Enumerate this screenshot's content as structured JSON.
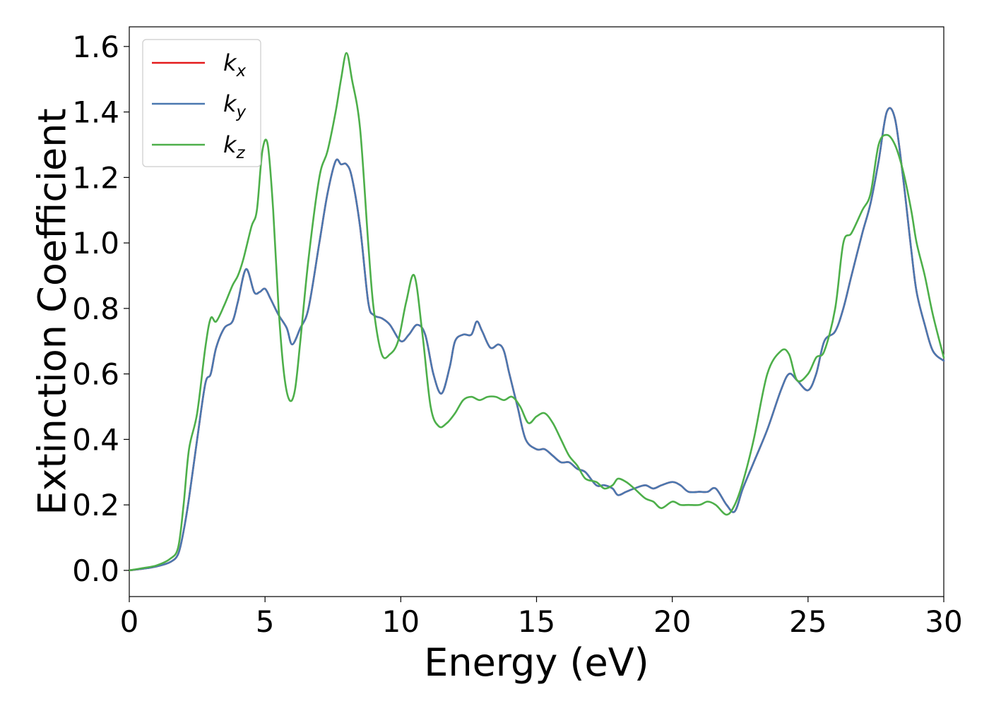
{
  "chart_data": {
    "type": "line",
    "title": "",
    "xlabel": "Energy (eV)",
    "ylabel": "Extinction Coefficient",
    "xlim": [
      0,
      30
    ],
    "ylim": [
      -0.08,
      1.66
    ],
    "xticks": [
      0,
      5,
      10,
      15,
      20,
      25,
      30
    ],
    "yticks": [
      0.0,
      0.2,
      0.4,
      0.6,
      0.8,
      1.0,
      1.2,
      1.4,
      1.6
    ],
    "grid": false,
    "legend_position": "top-left",
    "series": [
      {
        "name": "k",
        "subscript": "x",
        "color": "#e41a1c",
        "x": [
          0,
          0.5,
          1,
          1.5,
          1.8,
          2,
          2.2,
          2.5,
          2.8,
          3,
          3.2,
          3.5,
          3.8,
          4,
          4.3,
          4.6,
          4.8,
          5,
          5.2,
          5.5,
          5.8,
          6,
          6.3,
          6.6,
          7,
          7.3,
          7.6,
          7.8,
          8,
          8.2,
          8.5,
          8.8,
          9,
          9.3,
          9.6,
          10,
          10.3,
          10.6,
          10.9,
          11.2,
          11.5,
          11.8,
          12,
          12.3,
          12.6,
          12.8,
          13,
          13.3,
          13.6,
          13.8,
          14,
          14.3,
          14.6,
          15,
          15.3,
          15.6,
          15.9,
          16.2,
          16.5,
          16.8,
          17.2,
          17.5,
          17.8,
          18,
          18.3,
          18.6,
          19,
          19.3,
          19.6,
          20,
          20.3,
          20.6,
          21,
          21.3,
          21.6,
          22,
          22.3,
          22.6,
          23,
          23.5,
          24,
          24.3,
          24.6,
          25,
          25.3,
          25.6,
          26,
          26.3,
          26.6,
          27,
          27.3,
          27.6,
          27.9,
          28.2,
          28.5,
          28.8,
          29,
          29.3,
          29.6,
          30
        ],
        "values": [
          0,
          0.005,
          0.012,
          0.025,
          0.05,
          0.12,
          0.22,
          0.4,
          0.57,
          0.6,
          0.68,
          0.74,
          0.76,
          0.82,
          0.92,
          0.85,
          0.85,
          0.86,
          0.83,
          0.78,
          0.74,
          0.69,
          0.74,
          0.8,
          1.0,
          1.15,
          1.25,
          1.24,
          1.24,
          1.2,
          1.05,
          0.82,
          0.78,
          0.77,
          0.75,
          0.7,
          0.72,
          0.75,
          0.72,
          0.6,
          0.54,
          0.62,
          0.7,
          0.72,
          0.72,
          0.76,
          0.73,
          0.68,
          0.69,
          0.67,
          0.6,
          0.5,
          0.4,
          0.37,
          0.37,
          0.35,
          0.33,
          0.33,
          0.31,
          0.3,
          0.26,
          0.26,
          0.25,
          0.23,
          0.24,
          0.25,
          0.26,
          0.25,
          0.26,
          0.27,
          0.26,
          0.24,
          0.24,
          0.24,
          0.25,
          0.2,
          0.18,
          0.25,
          0.33,
          0.43,
          0.55,
          0.6,
          0.58,
          0.55,
          0.6,
          0.7,
          0.73,
          0.8,
          0.9,
          1.03,
          1.12,
          1.25,
          1.4,
          1.38,
          1.2,
          0.98,
          0.85,
          0.75,
          0.67,
          0.64
        ]
      },
      {
        "name": "k",
        "subscript": "y",
        "color": "#4a78b0",
        "x": [
          0,
          0.5,
          1,
          1.5,
          1.8,
          2,
          2.2,
          2.5,
          2.8,
          3,
          3.2,
          3.5,
          3.8,
          4,
          4.3,
          4.6,
          4.8,
          5,
          5.2,
          5.5,
          5.8,
          6,
          6.3,
          6.6,
          7,
          7.3,
          7.6,
          7.8,
          8,
          8.2,
          8.5,
          8.8,
          9,
          9.3,
          9.6,
          10,
          10.3,
          10.6,
          10.9,
          11.2,
          11.5,
          11.8,
          12,
          12.3,
          12.6,
          12.8,
          13,
          13.3,
          13.6,
          13.8,
          14,
          14.3,
          14.6,
          15,
          15.3,
          15.6,
          15.9,
          16.2,
          16.5,
          16.8,
          17.2,
          17.5,
          17.8,
          18,
          18.3,
          18.6,
          19,
          19.3,
          19.6,
          20,
          20.3,
          20.6,
          21,
          21.3,
          21.6,
          22,
          22.3,
          22.6,
          23,
          23.5,
          24,
          24.3,
          24.6,
          25,
          25.3,
          25.6,
          26,
          26.3,
          26.6,
          27,
          27.3,
          27.6,
          27.9,
          28.2,
          28.5,
          28.8,
          29,
          29.3,
          29.6,
          30
        ],
        "values": [
          0,
          0.005,
          0.012,
          0.025,
          0.05,
          0.12,
          0.22,
          0.4,
          0.57,
          0.6,
          0.68,
          0.74,
          0.76,
          0.82,
          0.92,
          0.85,
          0.85,
          0.86,
          0.83,
          0.78,
          0.74,
          0.69,
          0.74,
          0.8,
          1.0,
          1.15,
          1.25,
          1.24,
          1.24,
          1.2,
          1.05,
          0.82,
          0.78,
          0.77,
          0.75,
          0.7,
          0.72,
          0.75,
          0.72,
          0.6,
          0.54,
          0.62,
          0.7,
          0.72,
          0.72,
          0.76,
          0.73,
          0.68,
          0.69,
          0.67,
          0.6,
          0.5,
          0.4,
          0.37,
          0.37,
          0.35,
          0.33,
          0.33,
          0.31,
          0.3,
          0.26,
          0.26,
          0.25,
          0.23,
          0.24,
          0.25,
          0.26,
          0.25,
          0.26,
          0.27,
          0.26,
          0.24,
          0.24,
          0.24,
          0.25,
          0.2,
          0.18,
          0.25,
          0.33,
          0.43,
          0.55,
          0.6,
          0.58,
          0.55,
          0.6,
          0.7,
          0.73,
          0.8,
          0.9,
          1.03,
          1.12,
          1.25,
          1.4,
          1.38,
          1.2,
          0.98,
          0.85,
          0.75,
          0.67,
          0.64
        ]
      },
      {
        "name": "k",
        "subscript": "z",
        "color": "#4daf4a",
        "x": [
          0,
          0.5,
          1,
          1.5,
          1.8,
          2,
          2.2,
          2.5,
          2.8,
          3,
          3.2,
          3.5,
          3.8,
          4,
          4.2,
          4.5,
          4.7,
          4.9,
          5.1,
          5.3,
          5.5,
          5.7,
          5.9,
          6.1,
          6.3,
          6.6,
          7,
          7.3,
          7.6,
          7.8,
          8,
          8.2,
          8.5,
          8.8,
          9,
          9.3,
          9.6,
          9.9,
          10.2,
          10.5,
          10.8,
          11.1,
          11.4,
          11.7,
          12,
          12.3,
          12.6,
          12.9,
          13.2,
          13.5,
          13.8,
          14.1,
          14.4,
          14.7,
          15,
          15.3,
          15.6,
          15.9,
          16.2,
          16.5,
          16.8,
          17.2,
          17.5,
          17.8,
          18,
          18.3,
          18.6,
          19,
          19.3,
          19.6,
          20,
          20.3,
          20.6,
          21,
          21.3,
          21.6,
          22,
          22.3,
          22.6,
          23,
          23.5,
          24,
          24.3,
          24.6,
          25,
          25.3,
          25.6,
          26,
          26.3,
          26.6,
          27,
          27.3,
          27.6,
          27.9,
          28.2,
          28.5,
          28.8,
          29,
          29.3,
          29.6,
          30
        ],
        "values": [
          0,
          0.007,
          0.015,
          0.035,
          0.07,
          0.2,
          0.37,
          0.48,
          0.68,
          0.77,
          0.76,
          0.81,
          0.87,
          0.9,
          0.95,
          1.05,
          1.1,
          1.28,
          1.3,
          1.1,
          0.8,
          0.6,
          0.52,
          0.55,
          0.7,
          0.95,
          1.2,
          1.28,
          1.4,
          1.5,
          1.58,
          1.5,
          1.35,
          1.0,
          0.8,
          0.66,
          0.66,
          0.7,
          0.82,
          0.9,
          0.72,
          0.5,
          0.44,
          0.45,
          0.48,
          0.52,
          0.53,
          0.52,
          0.53,
          0.53,
          0.52,
          0.53,
          0.5,
          0.45,
          0.47,
          0.48,
          0.45,
          0.4,
          0.35,
          0.32,
          0.28,
          0.27,
          0.25,
          0.26,
          0.28,
          0.27,
          0.25,
          0.22,
          0.21,
          0.19,
          0.21,
          0.2,
          0.2,
          0.2,
          0.21,
          0.2,
          0.17,
          0.2,
          0.27,
          0.4,
          0.6,
          0.67,
          0.66,
          0.58,
          0.6,
          0.65,
          0.67,
          0.8,
          1.0,
          1.03,
          1.1,
          1.15,
          1.3,
          1.33,
          1.3,
          1.22,
          1.1,
          1.0,
          0.9,
          0.78,
          0.65
        ]
      }
    ]
  }
}
